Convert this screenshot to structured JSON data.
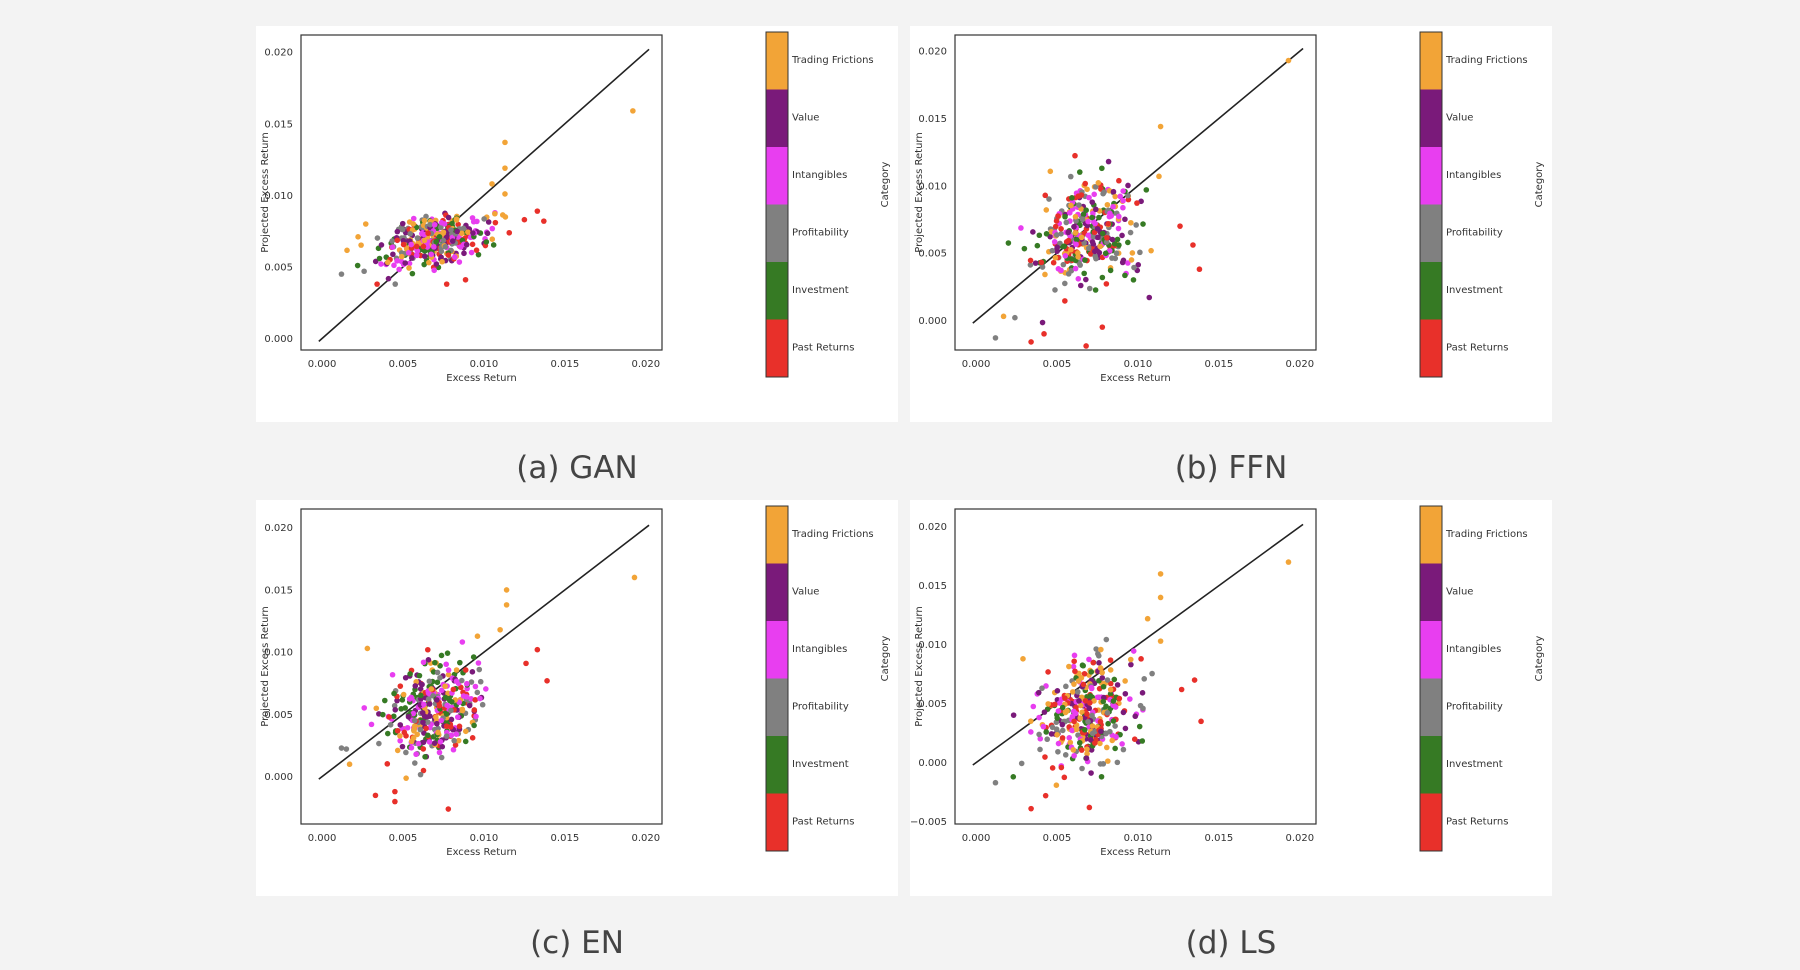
{
  "categories": [
    {
      "name": "Trading Frictions",
      "color": "#f2a437"
    },
    {
      "name": "Value",
      "color": "#7a1a7a"
    },
    {
      "name": "Intangibles",
      "color": "#e83ef0"
    },
    {
      "name": "Profitability",
      "color": "#808080"
    },
    {
      "name": "Investment",
      "color": "#367a24"
    },
    {
      "name": "Past Returns",
      "color": "#e8302a"
    }
  ],
  "colorbar_label": "Category",
  "chart_data": [
    {
      "type": "scatter",
      "caption": "(a) GAN",
      "xlabel": "Excess Return",
      "ylabel": "Projected Excess Return",
      "xlim": [
        -0.0013,
        0.021
      ],
      "ylim": [
        -0.0008,
        0.0212
      ],
      "xticks": [
        "0.000",
        "0.005",
        "0.010",
        "0.015",
        "0.020"
      ],
      "yticks": [
        "0.000",
        "0.005",
        "0.010",
        "0.015",
        "0.020"
      ],
      "xtick_values": [
        0.0,
        0.005,
        0.01,
        0.015,
        0.02
      ],
      "ytick_values": [
        0.0,
        0.005,
        0.01,
        0.015,
        0.02
      ],
      "reference_line": [
        [
          -0.0002,
          -0.0002
        ],
        [
          0.0202,
          0.0202
        ]
      ],
      "spread": {
        "x_sd": 0.0016,
        "y_sd": 0.0009,
        "slope": 0.22,
        "y_center": 0.0068
      },
      "outliers": [
        {
          "x": 0.0192,
          "y": 0.0159,
          "category": "Trading Frictions"
        },
        {
          "x": 0.0113,
          "y": 0.0137,
          "category": "Trading Frictions"
        },
        {
          "x": 0.0113,
          "y": 0.0119,
          "category": "Trading Frictions"
        },
        {
          "x": 0.0105,
          "y": 0.0108,
          "category": "Trading Frictions"
        },
        {
          "x": 0.0113,
          "y": 0.0101,
          "category": "Trading Frictions"
        },
        {
          "x": 0.0133,
          "y": 0.0089,
          "category": "Past Returns"
        },
        {
          "x": 0.0137,
          "y": 0.0082,
          "category": "Past Returns"
        },
        {
          "x": 0.0125,
          "y": 0.0083,
          "category": "Past Returns"
        },
        {
          "x": 0.0027,
          "y": 0.008,
          "category": "Trading Frictions"
        },
        {
          "x": 0.0012,
          "y": 0.0045,
          "category": "Profitability"
        },
        {
          "x": 0.0022,
          "y": 0.0051,
          "category": "Investment"
        },
        {
          "x": 0.0026,
          "y": 0.0047,
          "category": "Profitability"
        },
        {
          "x": 0.0034,
          "y": 0.0038,
          "category": "Past Returns"
        },
        {
          "x": 0.0077,
          "y": 0.0038,
          "category": "Past Returns"
        }
      ]
    },
    {
      "type": "scatter",
      "caption": "(b) FFN",
      "xlabel": "Excess Return",
      "ylabel": "Projected Excess Return",
      "xlim": [
        -0.0013,
        0.021
      ],
      "ylim": [
        -0.0022,
        0.0212
      ],
      "xticks": [
        "0.000",
        "0.005",
        "0.010",
        "0.015",
        "0.020"
      ],
      "yticks": [
        "0.000",
        "0.005",
        "0.010",
        "0.015",
        "0.020"
      ],
      "xtick_values": [
        0.0,
        0.005,
        0.01,
        0.015,
        0.02
      ],
      "ytick_values": [
        0.0,
        0.005,
        0.01,
        0.015,
        0.02
      ],
      "reference_line": [
        [
          -0.0002,
          -0.0002
        ],
        [
          0.0202,
          0.0202
        ]
      ],
      "spread": {
        "x_sd": 0.0015,
        "y_sd": 0.0019,
        "slope": 0.35,
        "y_center": 0.0065
      },
      "outliers": [
        {
          "x": 0.0193,
          "y": 0.0193,
          "category": "Trading Frictions"
        },
        {
          "x": 0.0114,
          "y": 0.0144,
          "category": "Trading Frictions"
        },
        {
          "x": 0.0113,
          "y": 0.0107,
          "category": "Trading Frictions"
        },
        {
          "x": 0.0126,
          "y": 0.007,
          "category": "Past Returns"
        },
        {
          "x": 0.0134,
          "y": 0.0056,
          "category": "Past Returns"
        },
        {
          "x": 0.0138,
          "y": 0.0038,
          "category": "Past Returns"
        },
        {
          "x": 0.0107,
          "y": 0.0017,
          "category": "Value"
        },
        {
          "x": 0.0012,
          "y": -0.0013,
          "category": "Profitability"
        },
        {
          "x": 0.0034,
          "y": -0.0016,
          "category": "Past Returns"
        },
        {
          "x": 0.0068,
          "y": -0.0019,
          "category": "Past Returns"
        },
        {
          "x": 0.0078,
          "y": -0.0005,
          "category": "Past Returns"
        },
        {
          "x": 0.0017,
          "y": 0.0003,
          "category": "Trading Frictions"
        },
        {
          "x": 0.0024,
          "y": 0.0002,
          "category": "Profitability"
        },
        {
          "x": 0.0042,
          "y": -0.001,
          "category": "Past Returns"
        }
      ]
    },
    {
      "type": "scatter",
      "caption": "(c) EN",
      "xlabel": "Excess Return",
      "ylabel": "Projected Excess Return",
      "xlim": [
        -0.0013,
        0.021
      ],
      "ylim": [
        -0.0038,
        0.0215
      ],
      "xticks": [
        "0.000",
        "0.005",
        "0.010",
        "0.015",
        "0.020"
      ],
      "yticks": [
        "0.000",
        "0.005",
        "0.010",
        "0.015",
        "0.020"
      ],
      "xtick_values": [
        0.0,
        0.005,
        0.01,
        0.015,
        0.02
      ],
      "ytick_values": [
        0.0,
        0.005,
        0.01,
        0.015,
        0.02
      ],
      "reference_line": [
        [
          -0.0002,
          -0.0002
        ],
        [
          0.0202,
          0.0202
        ]
      ],
      "spread": {
        "x_sd": 0.0015,
        "y_sd": 0.0019,
        "slope": 0.4,
        "y_center": 0.0053
      },
      "outliers": [
        {
          "x": 0.0193,
          "y": 0.016,
          "category": "Trading Frictions"
        },
        {
          "x": 0.0114,
          "y": 0.015,
          "category": "Trading Frictions"
        },
        {
          "x": 0.0114,
          "y": 0.0138,
          "category": "Trading Frictions"
        },
        {
          "x": 0.011,
          "y": 0.0118,
          "category": "Trading Frictions"
        },
        {
          "x": 0.0133,
          "y": 0.0102,
          "category": "Past Returns"
        },
        {
          "x": 0.0139,
          "y": 0.0077,
          "category": "Past Returns"
        },
        {
          "x": 0.0126,
          "y": 0.0091,
          "category": "Past Returns"
        },
        {
          "x": 0.0028,
          "y": 0.0103,
          "category": "Trading Frictions"
        },
        {
          "x": 0.0012,
          "y": 0.0023,
          "category": "Profitability"
        },
        {
          "x": 0.0017,
          "y": 0.001,
          "category": "Trading Frictions"
        },
        {
          "x": 0.0033,
          "y": -0.0015,
          "category": "Past Returns"
        },
        {
          "x": 0.0045,
          "y": -0.002,
          "category": "Past Returns"
        },
        {
          "x": 0.0078,
          "y": -0.0026,
          "category": "Past Returns"
        },
        {
          "x": 0.0045,
          "y": -0.0012,
          "category": "Past Returns"
        }
      ]
    },
    {
      "type": "scatter",
      "caption": "(d) LS",
      "xlabel": "Excess Return",
      "ylabel": "Projected Excess Return",
      "xlim": [
        -0.0013,
        0.021
      ],
      "ylim": [
        -0.0052,
        0.0215
      ],
      "xticks": [
        "0.000",
        "0.005",
        "0.010",
        "0.015",
        "0.020"
      ],
      "yticks": [
        "−0.005",
        "0.000",
        "0.005",
        "0.010",
        "0.015",
        "0.020"
      ],
      "xtick_values": [
        0.0,
        0.005,
        0.01,
        0.015,
        0.02
      ],
      "ytick_values": [
        -0.005,
        0.0,
        0.005,
        0.01,
        0.015,
        0.02
      ],
      "reference_line": [
        [
          -0.0002,
          -0.0002
        ],
        [
          0.0202,
          0.0202
        ]
      ],
      "spread": {
        "x_sd": 0.0015,
        "y_sd": 0.0021,
        "slope": 0.3,
        "y_center": 0.0042
      },
      "outliers": [
        {
          "x": 0.0193,
          "y": 0.017,
          "category": "Trading Frictions"
        },
        {
          "x": 0.0114,
          "y": 0.016,
          "category": "Trading Frictions"
        },
        {
          "x": 0.0114,
          "y": 0.014,
          "category": "Trading Frictions"
        },
        {
          "x": 0.0106,
          "y": 0.0122,
          "category": "Trading Frictions"
        },
        {
          "x": 0.0114,
          "y": 0.0103,
          "category": "Trading Frictions"
        },
        {
          "x": 0.0029,
          "y": 0.0088,
          "category": "Trading Frictions"
        },
        {
          "x": 0.0135,
          "y": 0.007,
          "category": "Past Returns"
        },
        {
          "x": 0.0139,
          "y": 0.0035,
          "category": "Past Returns"
        },
        {
          "x": 0.0127,
          "y": 0.0062,
          "category": "Past Returns"
        },
        {
          "x": 0.0012,
          "y": -0.0017,
          "category": "Profitability"
        },
        {
          "x": 0.0034,
          "y": -0.0039,
          "category": "Past Returns"
        },
        {
          "x": 0.007,
          "y": -0.0038,
          "category": "Past Returns"
        },
        {
          "x": 0.0043,
          "y": -0.0028,
          "category": "Past Returns"
        },
        {
          "x": 0.0023,
          "y": -0.0012,
          "category": "Investment"
        }
      ]
    }
  ]
}
